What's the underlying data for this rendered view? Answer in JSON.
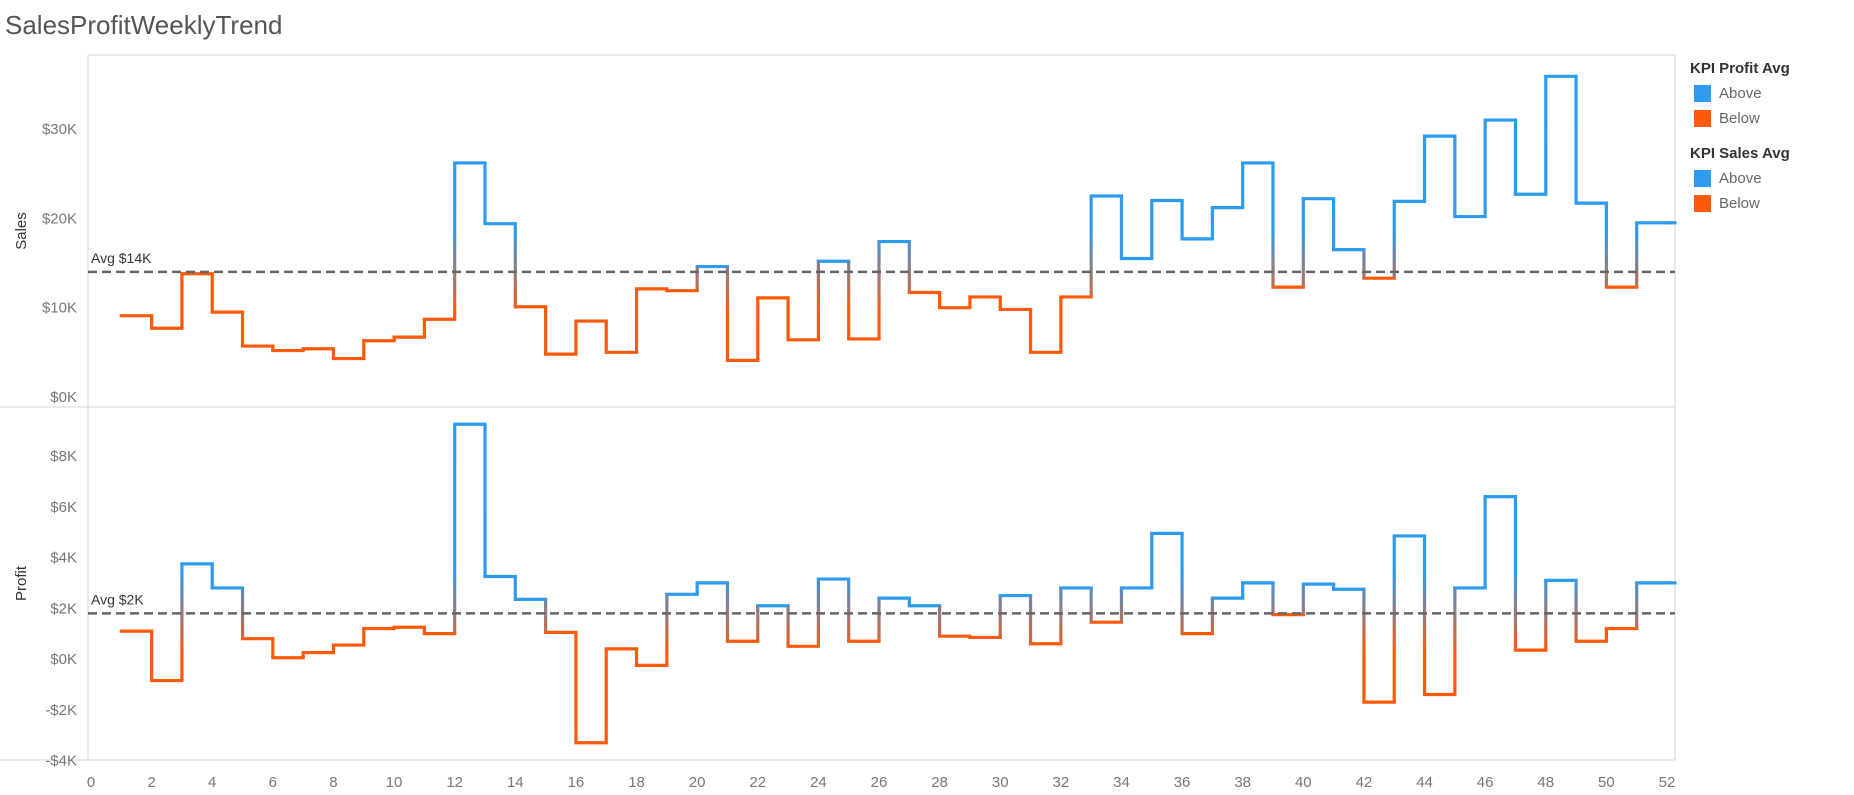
{
  "title": "SalesProfitWeeklyTrend",
  "legend": [
    {
      "title": "KPI Profit Avg",
      "items": [
        {
          "label": "Above",
          "color": "#2D9BF0"
        },
        {
          "label": "Below",
          "color": "#FF5A0A"
        }
      ]
    },
    {
      "title": "KPI Sales Avg",
      "items": [
        {
          "label": "Above",
          "color": "#2D9BF0"
        },
        {
          "label": "Below",
          "color": "#FF5A0A"
        }
      ]
    }
  ],
  "chart_data": [
    {
      "type": "line",
      "step": true,
      "title": "",
      "xlabel": "",
      "ylabel": "Sales",
      "x": [
        1,
        2,
        3,
        4,
        5,
        6,
        7,
        8,
        9,
        10,
        11,
        12,
        13,
        14,
        15,
        16,
        17,
        18,
        19,
        20,
        21,
        22,
        23,
        24,
        25,
        26,
        27,
        28,
        29,
        30,
        31,
        32,
        33,
        34,
        35,
        36,
        37,
        38,
        39,
        40,
        41,
        42,
        43,
        44,
        45,
        46,
        47,
        48,
        49,
        50,
        51,
        52
      ],
      "values": [
        9100,
        7700,
        13800,
        9500,
        5700,
        5200,
        5400,
        4300,
        6300,
        6700,
        8700,
        26200,
        19400,
        10100,
        4800,
        8500,
        5000,
        12100,
        11900,
        14600,
        4100,
        11100,
        6400,
        15200,
        6500,
        17400,
        11700,
        10000,
        11200,
        9800,
        5000,
        11200,
        22500,
        15500,
        22000,
        17700,
        21200,
        26200,
        12300,
        22200,
        16500,
        13300,
        21900,
        29200,
        20200,
        31000,
        22700,
        35900,
        21700,
        12300,
        19500,
        19500
      ],
      "reference_line": {
        "value": 14000,
        "label": "Avg $14K"
      },
      "xlim": [
        0,
        52
      ],
      "ylim": [
        0,
        37500
      ],
      "x_ticks": [
        0,
        2,
        4,
        6,
        8,
        10,
        12,
        14,
        16,
        18,
        20,
        22,
        24,
        26,
        28,
        30,
        32,
        34,
        36,
        38,
        40,
        42,
        44,
        46,
        48,
        50,
        52
      ],
      "y_ticks": [
        {
          "value": 0,
          "label": "$0K"
        },
        {
          "value": 10000,
          "label": "$10K"
        },
        {
          "value": 20000,
          "label": "$20K"
        },
        {
          "value": 30000,
          "label": "$30K"
        }
      ],
      "colors": {
        "above": "#2D9BF0",
        "below": "#FF5A0A"
      }
    },
    {
      "type": "line",
      "step": true,
      "title": "",
      "xlabel": "",
      "ylabel": "Profit",
      "x": [
        1,
        2,
        3,
        4,
        5,
        6,
        7,
        8,
        9,
        10,
        11,
        12,
        13,
        14,
        15,
        16,
        17,
        18,
        19,
        20,
        21,
        22,
        23,
        24,
        25,
        26,
        27,
        28,
        29,
        30,
        31,
        32,
        33,
        34,
        35,
        36,
        37,
        38,
        39,
        40,
        41,
        42,
        43,
        44,
        45,
        46,
        47,
        48,
        49,
        50,
        51,
        52
      ],
      "values": [
        1100,
        -850,
        3750,
        2800,
        800,
        50,
        250,
        550,
        1200,
        1250,
        1000,
        9250,
        3250,
        2350,
        1050,
        -3300,
        400,
        -250,
        2550,
        3000,
        700,
        2100,
        500,
        3150,
        700,
        2400,
        2100,
        900,
        850,
        2500,
        600,
        2800,
        1450,
        2800,
        4950,
        1000,
        2400,
        3000,
        1750,
        2950,
        2750,
        -1700,
        4850,
        -1400,
        2800,
        6400,
        350,
        3100,
        700,
        1200,
        3000,
        3000
      ],
      "reference_line": {
        "value": 1800,
        "label": "Avg $2K"
      },
      "xlim": [
        0,
        52
      ],
      "ylim": [
        -4000,
        9000
      ],
      "x_ticks": [
        0,
        2,
        4,
        6,
        8,
        10,
        12,
        14,
        16,
        18,
        20,
        22,
        24,
        26,
        28,
        30,
        32,
        34,
        36,
        38,
        40,
        42,
        44,
        46,
        48,
        50,
        52
      ],
      "y_ticks": [
        {
          "value": -4000,
          "label": "-$4K"
        },
        {
          "value": -2000,
          "label": "-$2K"
        },
        {
          "value": 0,
          "label": "$0K"
        },
        {
          "value": 2000,
          "label": "$2K"
        },
        {
          "value": 4000,
          "label": "$4K"
        },
        {
          "value": 6000,
          "label": "$6K"
        },
        {
          "value": 8000,
          "label": "$8K"
        }
      ],
      "colors": {
        "above": "#2D9BF0",
        "below": "#FF5A0A"
      }
    }
  ]
}
